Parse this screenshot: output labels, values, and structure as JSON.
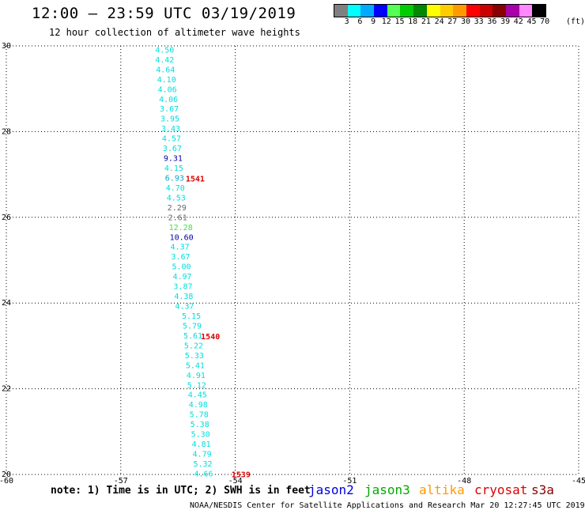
{
  "header": {
    "title": "12:00 – 23:59 UTC 03/19/2019",
    "subtitle": "12 hour collection of altimeter wave heights"
  },
  "color_scale": {
    "labels": [
      "3",
      "6",
      "9",
      "12",
      "15",
      "18",
      "21",
      "24",
      "27",
      "30",
      "33",
      "36",
      "39",
      "42",
      "45",
      "70"
    ],
    "unit": "(ft)",
    "colors": [
      "#808080",
      "#00ffff",
      "#00aaff",
      "#0000ff",
      "#55ff55",
      "#00cc00",
      "#008800",
      "#ffff00",
      "#ffcc00",
      "#ff9900",
      "#ff0000",
      "#cc0000",
      "#880000",
      "#aa00aa",
      "#ff88ff",
      "#000000"
    ]
  },
  "map": {
    "lon_range": [
      -60,
      -45
    ],
    "lat_range": [
      20,
      30
    ],
    "lon_ticks": [
      "-60",
      "-57",
      "-54",
      "-51",
      "-48",
      "-45"
    ],
    "lat_ticks": [
      "30",
      "28",
      "26",
      "24",
      "22",
      "20"
    ],
    "lon_tick_values": [
      -60,
      -57,
      -54,
      -51,
      -48,
      -45
    ],
    "lat_tick_values": [
      30,
      28,
      26,
      24,
      22,
      20
    ],
    "measurements": [
      {
        "v": "4.50",
        "lon": -56.1,
        "lat": 29.9,
        "c": "#00dddd"
      },
      {
        "v": "4.42",
        "lon": -56.1,
        "lat": 29.67,
        "c": "#00dddd"
      },
      {
        "v": "4.64",
        "lon": -56.08,
        "lat": 29.44,
        "c": "#00dddd"
      },
      {
        "v": "4.10",
        "lon": -56.05,
        "lat": 29.21,
        "c": "#00dddd"
      },
      {
        "v": "4.06",
        "lon": -56.03,
        "lat": 28.98,
        "c": "#00dddd"
      },
      {
        "v": "4.06",
        "lon": -56.0,
        "lat": 28.75,
        "c": "#00dddd"
      },
      {
        "v": "3.67",
        "lon": -55.98,
        "lat": 28.52,
        "c": "#00dddd"
      },
      {
        "v": "3.95",
        "lon": -55.96,
        "lat": 28.29,
        "c": "#00dddd"
      },
      {
        "v": "3.43",
        "lon": -55.94,
        "lat": 28.06,
        "c": "#00dddd"
      },
      {
        "v": "4.57",
        "lon": -55.92,
        "lat": 27.83,
        "c": "#00dddd"
      },
      {
        "v": "3.67",
        "lon": -55.9,
        "lat": 27.6,
        "c": "#00dddd"
      },
      {
        "v": "9.31",
        "lon": -55.88,
        "lat": 27.37,
        "c": "#0000aa"
      },
      {
        "v": "4.15",
        "lon": -55.86,
        "lat": 27.14,
        "c": "#00dddd"
      },
      {
        "v": "6.93",
        "lon": -55.84,
        "lat": 26.91,
        "c": "#00aacc"
      },
      {
        "v": "4.70",
        "lon": -55.82,
        "lat": 26.68,
        "c": "#00dddd"
      },
      {
        "v": "4.53",
        "lon": -55.8,
        "lat": 26.45,
        "c": "#00dddd"
      },
      {
        "v": "2.29",
        "lon": -55.78,
        "lat": 26.22,
        "c": "#666666"
      },
      {
        "v": "2.61",
        "lon": -55.76,
        "lat": 25.99,
        "c": "#666666"
      },
      {
        "v": "12.28",
        "lon": -55.74,
        "lat": 25.76,
        "c": "#44dd44"
      },
      {
        "v": "10.60",
        "lon": -55.72,
        "lat": 25.53,
        "c": "#0000aa"
      },
      {
        "v": "4.37",
        "lon": -55.7,
        "lat": 25.3,
        "c": "#00dddd"
      },
      {
        "v": "3.67",
        "lon": -55.68,
        "lat": 25.07,
        "c": "#00dddd"
      },
      {
        "v": "5.00",
        "lon": -55.66,
        "lat": 24.84,
        "c": "#00dddd"
      },
      {
        "v": "4.97",
        "lon": -55.64,
        "lat": 24.61,
        "c": "#00dddd"
      },
      {
        "v": "3.87",
        "lon": -55.62,
        "lat": 24.38,
        "c": "#00dddd"
      },
      {
        "v": "4.38",
        "lon": -55.6,
        "lat": 24.15,
        "c": "#00dddd"
      },
      {
        "v": "4.37",
        "lon": -55.58,
        "lat": 23.92,
        "c": "#00dddd"
      },
      {
        "v": "5.15",
        "lon": -55.4,
        "lat": 23.69,
        "c": "#00dddd"
      },
      {
        "v": "5.79",
        "lon": -55.38,
        "lat": 23.46,
        "c": "#00dddd"
      },
      {
        "v": "5.61",
        "lon": -55.36,
        "lat": 23.23,
        "c": "#00dddd"
      },
      {
        "v": "5.22",
        "lon": -55.34,
        "lat": 23.0,
        "c": "#00dddd"
      },
      {
        "v": "5.33",
        "lon": -55.32,
        "lat": 22.77,
        "c": "#00dddd"
      },
      {
        "v": "5.41",
        "lon": -55.3,
        "lat": 22.54,
        "c": "#00dddd"
      },
      {
        "v": "4.91",
        "lon": -55.28,
        "lat": 22.31,
        "c": "#00dddd"
      },
      {
        "v": "5.12",
        "lon": -55.26,
        "lat": 22.08,
        "c": "#00dddd"
      },
      {
        "v": "4.45",
        "lon": -55.24,
        "lat": 21.85,
        "c": "#00dddd"
      },
      {
        "v": "4.98",
        "lon": -55.22,
        "lat": 21.62,
        "c": "#00dddd"
      },
      {
        "v": "5.78",
        "lon": -55.2,
        "lat": 21.39,
        "c": "#00dddd"
      },
      {
        "v": "5.38",
        "lon": -55.18,
        "lat": 21.16,
        "c": "#00dddd"
      },
      {
        "v": "5.30",
        "lon": -55.16,
        "lat": 20.93,
        "c": "#00dddd"
      },
      {
        "v": "4.81",
        "lon": -55.14,
        "lat": 20.7,
        "c": "#00dddd"
      },
      {
        "v": "4.79",
        "lon": -55.12,
        "lat": 20.47,
        "c": "#00dddd"
      },
      {
        "v": "5.32",
        "lon": -55.1,
        "lat": 20.24,
        "c": "#00dddd"
      },
      {
        "v": "4.66",
        "lon": -55.08,
        "lat": 20.01,
        "c": "#00dddd"
      }
    ],
    "times": [
      {
        "v": "1541",
        "lon": -55.3,
        "lat": 26.91
      },
      {
        "v": "1540",
        "lon": -54.9,
        "lat": 23.23
      },
      {
        "v": "1539",
        "lon": -54.1,
        "lat": 20.01
      }
    ],
    "time_color": "#dd0000"
  },
  "footer": {
    "note": "note: 1) Time is in UTC; 2) SWH is in feet",
    "satellites": [
      {
        "name": "jason2",
        "color": "#0000dd"
      },
      {
        "name": "jason3",
        "color": "#00aa00"
      },
      {
        "name": "altika",
        "color": "#ff9900"
      },
      {
        "name": "cryosat",
        "color": "#dd0000"
      },
      {
        "name": "s3a",
        "color": "#880000"
      }
    ],
    "credit": "NOAA/NESDIS Center for Satellite Applications and Research   Mar 20 12:27:45 UTC 2019"
  }
}
